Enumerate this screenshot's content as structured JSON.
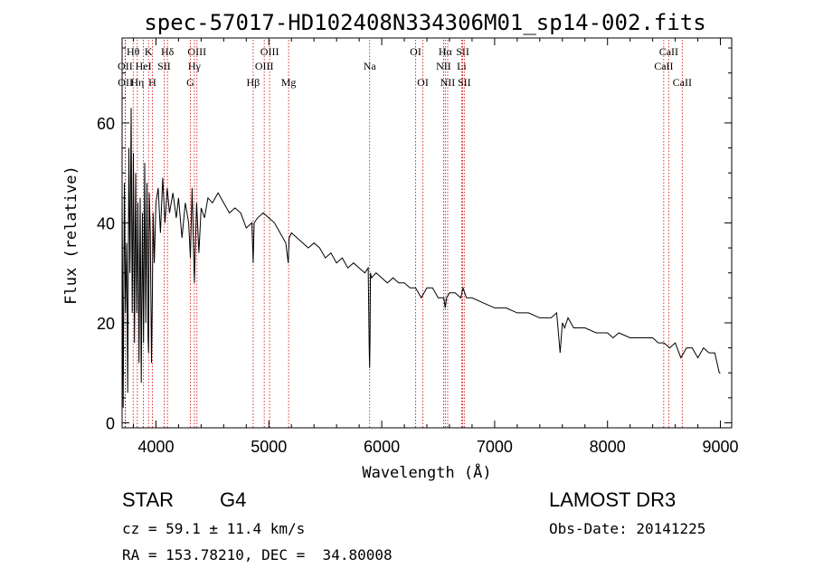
{
  "chart_data": {
    "type": "line",
    "title": "spec-57017-HD102408N334306M01_sp14-002.fits",
    "xlabel": "Wavelength (Å)",
    "ylabel": "Flux (relative)",
    "xlim": [
      3700,
      9100
    ],
    "ylim": [
      -1,
      77
    ],
    "xticks": [
      4000,
      5000,
      6000,
      7000,
      8000,
      9000
    ],
    "yticks": [
      0,
      20,
      40,
      60
    ],
    "grid": false,
    "series": [
      {
        "name": "spectrum",
        "x": [
          3700,
          3710,
          3720,
          3730,
          3740,
          3750,
          3760,
          3770,
          3780,
          3790,
          3800,
          3810,
          3820,
          3830,
          3840,
          3850,
          3860,
          3870,
          3880,
          3890,
          3900,
          3910,
          3920,
          3930,
          3935,
          3940,
          3950,
          3960,
          3968,
          3975,
          3985,
          4000,
          4020,
          4040,
          4060,
          4080,
          4100,
          4120,
          4150,
          4180,
          4200,
          4230,
          4260,
          4290,
          4305,
          4320,
          4340,
          4360,
          4380,
          4400,
          4430,
          4460,
          4500,
          4550,
          4600,
          4650,
          4700,
          4750,
          4800,
          4850,
          4861,
          4870,
          4900,
          4950,
          5000,
          5050,
          5100,
          5150,
          5172,
          5180,
          5200,
          5250,
          5300,
          5350,
          5400,
          5450,
          5500,
          5550,
          5600,
          5650,
          5700,
          5750,
          5800,
          5850,
          5880,
          5890,
          5893,
          5896,
          5900,
          5910,
          5950,
          6000,
          6050,
          6100,
          6150,
          6200,
          6250,
          6300,
          6350,
          6400,
          6450,
          6500,
          6550,
          6563,
          6575,
          6600,
          6650,
          6700,
          6720,
          6750,
          6800,
          6900,
          7000,
          7100,
          7200,
          7300,
          7400,
          7500,
          7550,
          7580,
          7600,
          7620,
          7650,
          7700,
          7800,
          7900,
          8000,
          8050,
          8100,
          8200,
          8300,
          8400,
          8450,
          8500,
          8550,
          8600,
          8650,
          8700,
          8750,
          8800,
          8850,
          8900,
          8950,
          8990,
          9000
        ],
        "values": [
          46,
          3,
          48,
          22,
          36,
          6,
          55,
          30,
          63,
          22,
          54,
          16,
          50,
          22,
          44,
          12,
          45,
          8,
          42,
          16,
          52,
          20,
          48,
          17,
          14,
          46,
          38,
          12,
          26,
          42,
          32,
          44,
          47,
          38,
          49,
          40,
          47,
          42,
          46,
          41,
          45,
          37,
          44,
          40,
          33,
          47,
          28,
          44,
          34,
          43,
          41,
          45,
          44,
          46,
          44,
          42,
          43,
          42,
          39,
          40,
          32,
          40,
          41,
          42,
          41,
          40,
          38,
          36,
          32,
          37,
          38,
          37,
          36,
          35,
          36,
          35,
          33,
          34,
          32,
          33,
          31,
          32,
          31,
          30,
          31,
          14,
          11,
          16,
          30,
          29,
          30,
          29,
          28,
          29,
          28,
          28,
          27,
          27,
          25,
          27,
          27,
          25,
          25,
          23,
          25,
          26,
          26,
          25,
          27,
          25,
          25,
          24,
          23,
          23,
          22,
          22,
          21,
          21,
          22,
          14,
          20,
          19,
          21,
          19,
          19,
          18,
          18,
          17,
          18,
          17,
          17,
          17,
          16,
          16,
          15,
          16,
          13,
          15,
          15,
          13,
          15,
          14,
          14,
          10,
          10
        ]
      }
    ],
    "lines": [
      {
        "name": "Hθ",
        "wl": 3798,
        "row": 1
      },
      {
        "name": "OII",
        "wl": 3727,
        "row": 2
      },
      {
        "name": "OII",
        "wl": 3729,
        "row": 3
      },
      {
        "name": "Hη",
        "wl": 3835,
        "row": 3
      },
      {
        "name": "K",
        "wl": 3934,
        "row": 1
      },
      {
        "name": "HeI",
        "wl": 3889,
        "row": 2
      },
      {
        "name": "H",
        "wl": 3968,
        "row": 3
      },
      {
        "name": "SII",
        "wl": 4072,
        "row": 2
      },
      {
        "name": "Hδ",
        "wl": 4102,
        "row": 1
      },
      {
        "name": "OIII",
        "wl": 4363,
        "row": 1
      },
      {
        "name": "Hγ",
        "wl": 4340,
        "row": 2
      },
      {
        "name": "G",
        "wl": 4305,
        "row": 3
      },
      {
        "name": "Hβ",
        "wl": 4861,
        "row": 3
      },
      {
        "name": "OIII",
        "wl": 5007,
        "row": 1
      },
      {
        "name": "OIII",
        "wl": 4959,
        "row": 2
      },
      {
        "name": "Mg",
        "wl": 5175,
        "row": 3
      },
      {
        "name": "Na",
        "wl": 5893,
        "row": 2
      },
      {
        "name": "OI",
        "wl": 6300,
        "row": 1
      },
      {
        "name": "OI",
        "wl": 6364,
        "row": 3
      },
      {
        "name": "Hα",
        "wl": 6563,
        "row": 1
      },
      {
        "name": "NII",
        "wl": 6548,
        "row": 2
      },
      {
        "name": "NII",
        "wl": 6584,
        "row": 3
      },
      {
        "name": "SII",
        "wl": 6717,
        "row": 1
      },
      {
        "name": "Li",
        "wl": 6708,
        "row": 2
      },
      {
        "name": "SII",
        "wl": 6731,
        "row": 3
      },
      {
        "name": "CaII",
        "wl": 8542,
        "row": 1
      },
      {
        "name": "CaII",
        "wl": 8498,
        "row": 2
      },
      {
        "name": "CaII",
        "wl": 8662,
        "row": 3
      }
    ]
  },
  "info": {
    "object_class": "STAR",
    "subclass": "G4",
    "survey": "LAMOST DR3",
    "cz": "cz = 59.1 ± 11.4 km/s",
    "obs_date": "Obs-Date: 20141225",
    "coords": "RA = 153.78210, DEC =  34.80008"
  },
  "colors": {
    "axis": "#000000",
    "spectrum": "#000000",
    "line_marker": "#cc0000",
    "background": "#ffffff"
  }
}
